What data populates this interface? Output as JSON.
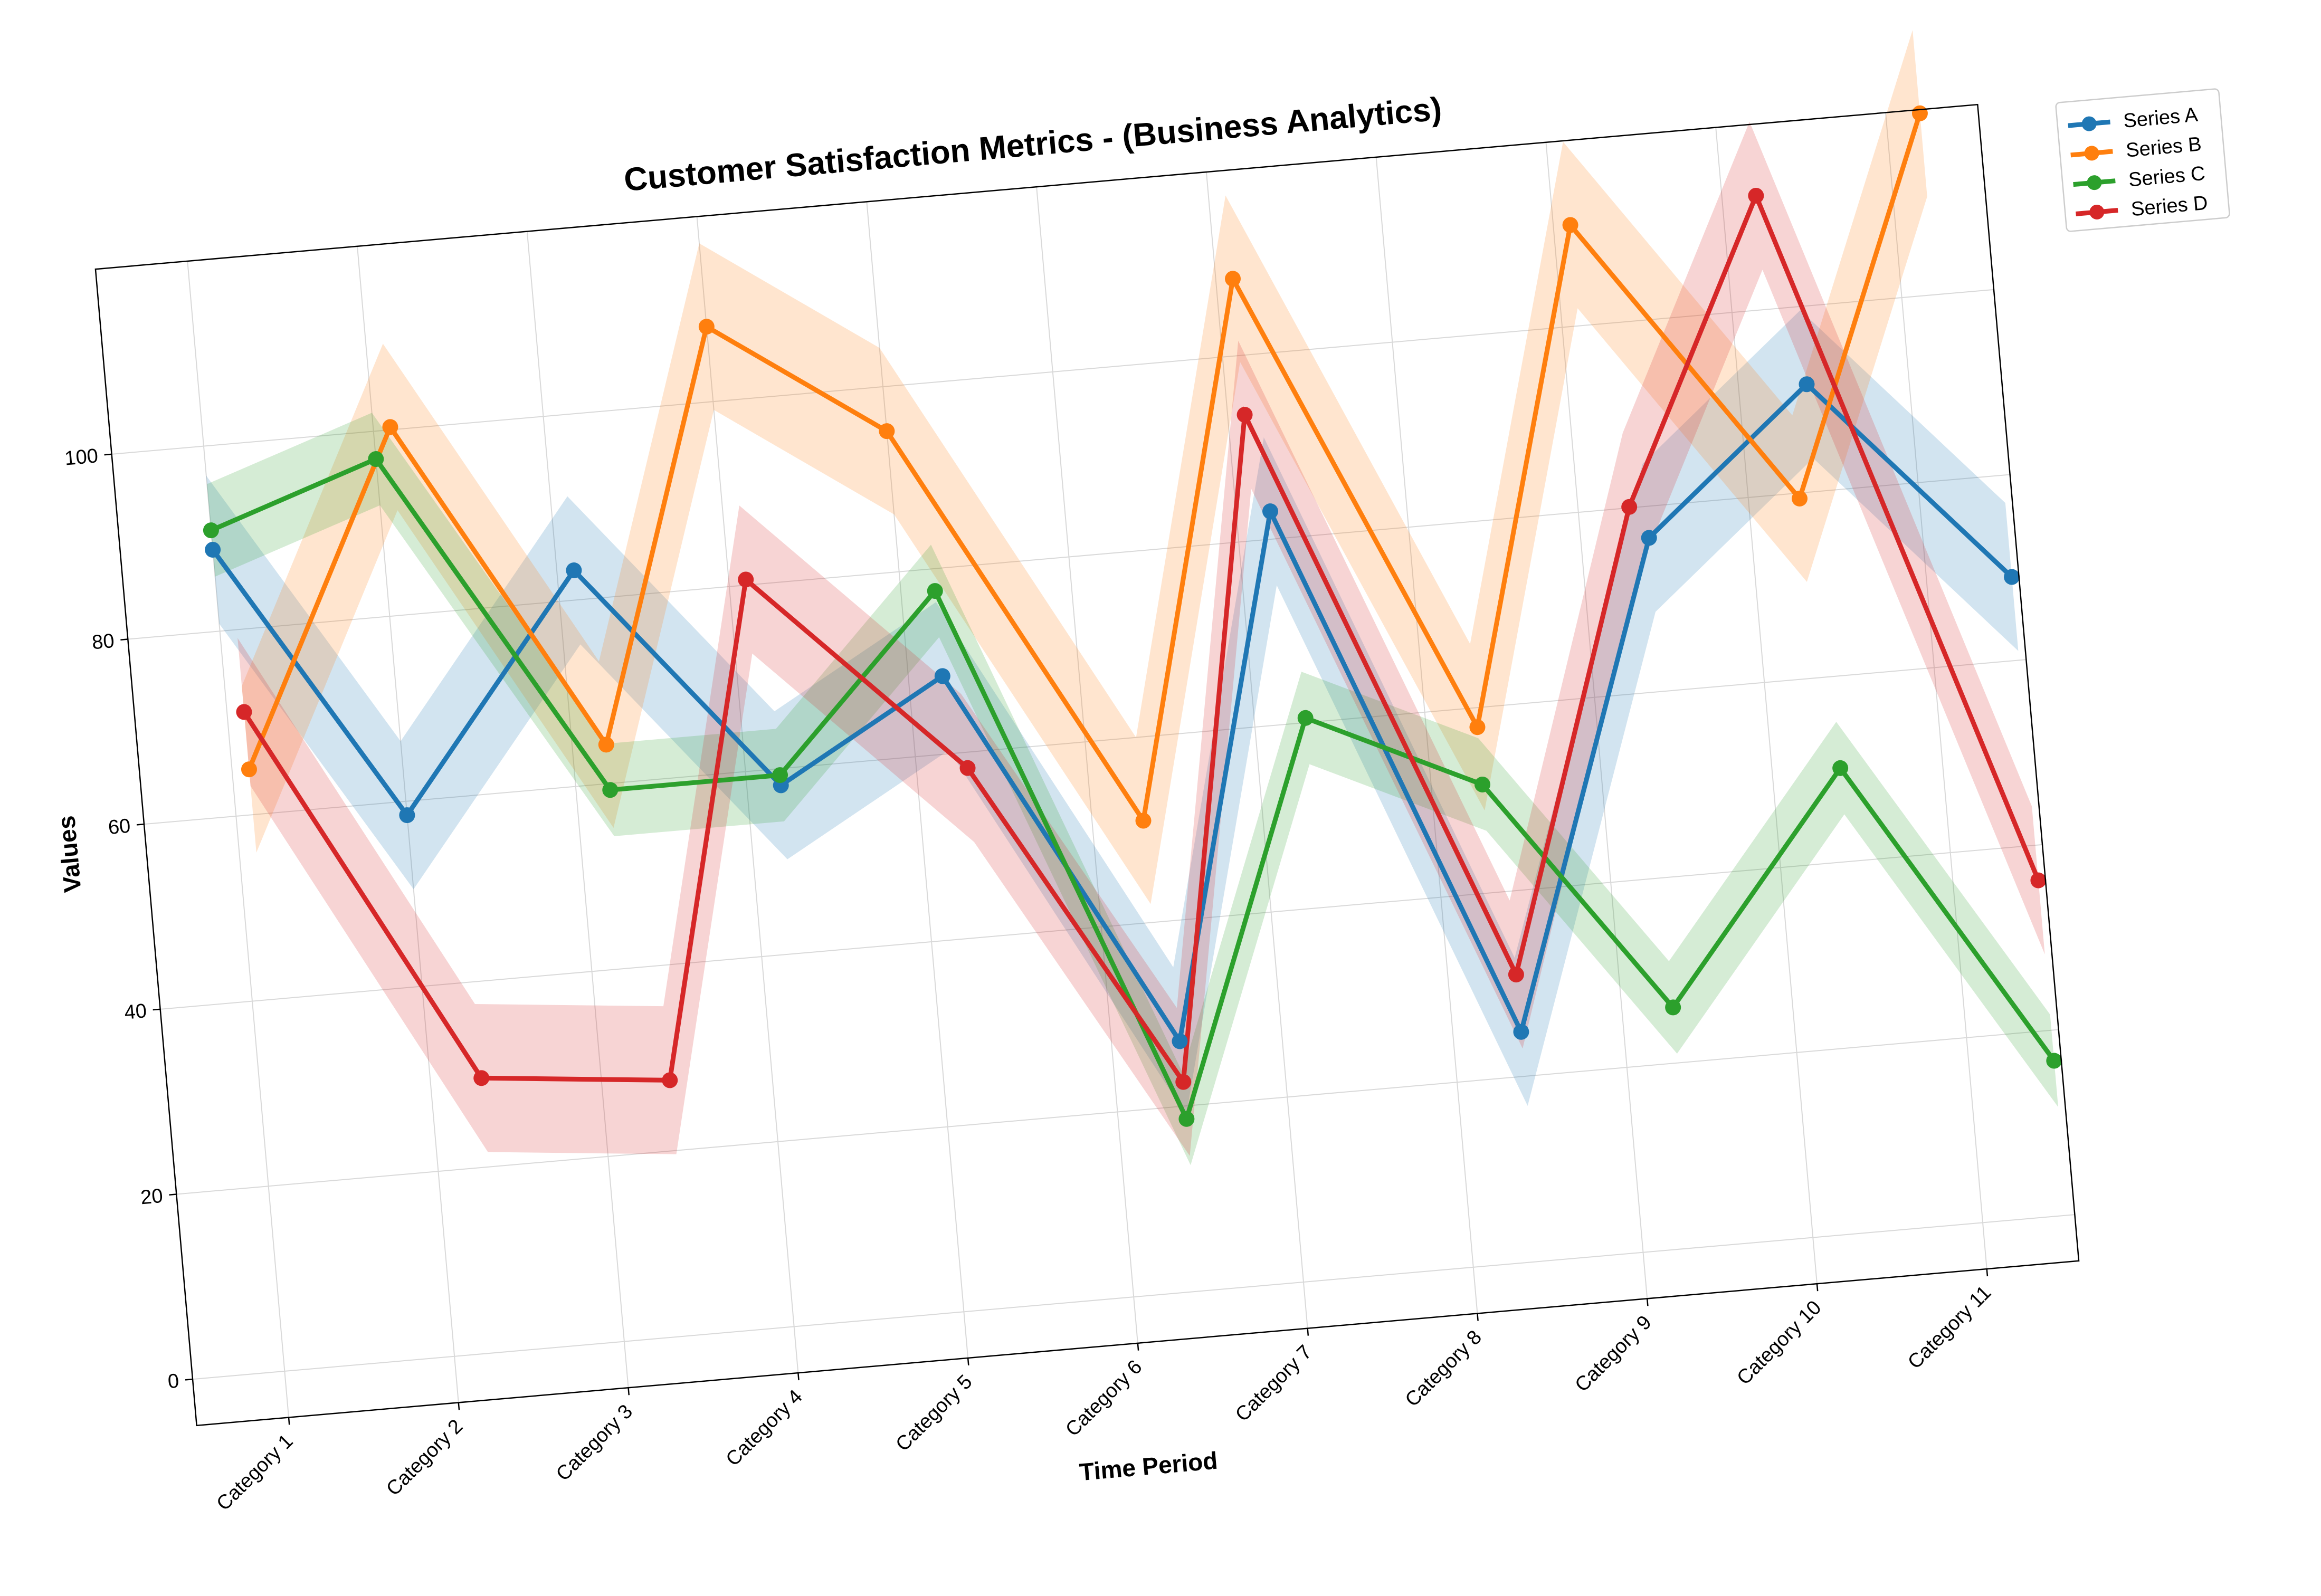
{
  "chart_data": {
    "type": "line",
    "title": "Customer Satisfaction Metrics - (Business Analytics)",
    "xlabel": "Time Period",
    "ylabel": "Values",
    "categories": [
      "Category 1",
      "Category 2",
      "Category 3",
      "Category 4",
      "Category 5",
      "Category 6",
      "Category 7",
      "Category 8",
      "Category 9",
      "Category 10",
      "Category 11"
    ],
    "ylim": [
      -5,
      120
    ],
    "yticks": [
      0,
      20,
      40,
      60,
      80,
      100
    ],
    "ytick_labels": [
      "0",
      "20",
      "40",
      "60",
      "80",
      "100"
    ],
    "grid": true,
    "legend_position": "outside-top-right",
    "rotation_degrees": -5,
    "series": [
      {
        "name": "Series A",
        "color": "#1f77b4",
        "x": [
          0.0,
          1.0,
          2.1,
          3.2,
          4.2,
          5.4,
          6.2,
          7.4,
          8.4,
          9.4,
          10.5
        ],
        "values": [
          88.8,
          58.5,
          83.2,
          58.2,
          68.4,
          27.0,
          83.0,
          24.8,
          76.6,
          91.6,
          69.0
        ],
        "band": 8
      },
      {
        "name": "Series B",
        "color": "#ff7f0e",
        "x": [
          0.1,
          1.1,
          2.2,
          3.0,
          4.0,
          5.3,
          6.1,
          7.3,
          8.1,
          9.3,
          10.2
        ],
        "values": [
          64.9,
          100.3,
          64.2,
          108.1,
          95.2,
          51.0,
          108.3,
          57.9,
          110.9,
          79.4,
          119.6
        ],
        "band": 9
      },
      {
        "name": "Series C",
        "color": "#2ca02c",
        "x": [
          0.0,
          1.0,
          2.2,
          3.2,
          4.2,
          5.4,
          6.3,
          7.3,
          8.3,
          9.4,
          10.5
        ],
        "values": [
          90.9,
          97.0,
          59.3,
          59.3,
          77.6,
          18.6,
          60.5,
          51.7,
          26.0,
          50.1,
          16.7
        ],
        "band": 5
      },
      {
        "name": "Series D",
        "color": "#d62728",
        "x": [
          0.1,
          1.3,
          2.4,
          3.1,
          4.3,
          5.4,
          6.1,
          7.4,
          8.3,
          9.2,
          10.5
        ],
        "values": [
          71.1,
          29.6,
          27.6,
          80.6,
          58.3,
          22.6,
          93.6,
          31.0,
          80.1,
          112.3,
          36.2
        ],
        "band": 8
      }
    ]
  }
}
